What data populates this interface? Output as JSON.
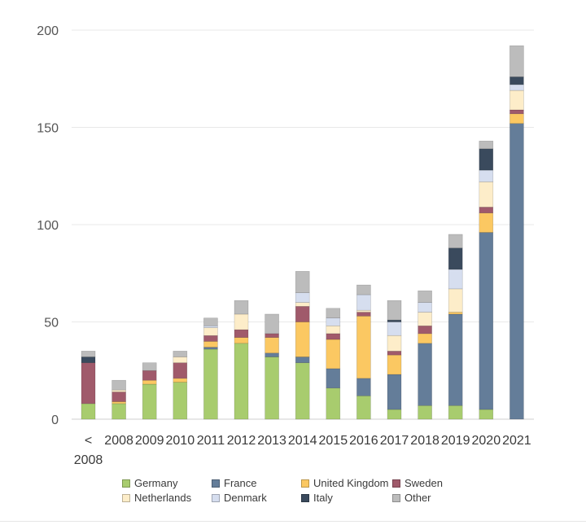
{
  "chart_data": {
    "type": "bar",
    "stacked": true,
    "categories": [
      "< 2008",
      "2008",
      "2009",
      "2010",
      "2011",
      "2012",
      "2013",
      "2014",
      "2015",
      "2016",
      "2017",
      "2018",
      "2019",
      "2020",
      "2021"
    ],
    "ylim": [
      0,
      200
    ],
    "yticks": [
      0,
      50,
      100,
      150,
      200
    ],
    "grid": true,
    "legend_position": "bottom",
    "series": [
      {
        "name": "Germany",
        "color": "#a8cc6e",
        "values": [
          8,
          8,
          18,
          19,
          36,
          39,
          32,
          29,
          16,
          12,
          5,
          7,
          7,
          5,
          0
        ]
      },
      {
        "name": "France",
        "color": "#647d99",
        "values": [
          0,
          0,
          0,
          0,
          1,
          0,
          2,
          3,
          10,
          9,
          18,
          32,
          47,
          91,
          152
        ]
      },
      {
        "name": "United Kingdom",
        "color": "#fbc862",
        "values": [
          0,
          1,
          2,
          2,
          3,
          3,
          8,
          18,
          15,
          32,
          10,
          5,
          1,
          10,
          5
        ]
      },
      {
        "name": "Sweden",
        "color": "#a05a6b",
        "values": [
          21,
          5,
          5,
          8,
          3,
          4,
          2,
          8,
          3,
          2,
          2,
          4,
          0,
          3,
          2
        ]
      },
      {
        "name": "Netherlands",
        "color": "#fdedc9",
        "values": [
          0,
          1,
          0,
          3,
          4,
          8,
          0,
          2,
          4,
          1,
          8,
          7,
          12,
          13,
          10
        ]
      },
      {
        "name": "Denmark",
        "color": "#d6deef",
        "values": [
          0,
          0,
          0,
          0,
          1,
          0,
          0,
          5,
          4,
          8,
          7,
          5,
          10,
          6,
          3
        ]
      },
      {
        "name": "Italy",
        "color": "#3a4a5d",
        "values": [
          3,
          0,
          0,
          0,
          0,
          0,
          0,
          0,
          0,
          0,
          1,
          0,
          11,
          11,
          4
        ]
      },
      {
        "name": "Other",
        "color": "#bcbcbc",
        "values": [
          3,
          5,
          4,
          3,
          4,
          7,
          10,
          11,
          5,
          5,
          10,
          6,
          7,
          4,
          16
        ]
      }
    ]
  }
}
